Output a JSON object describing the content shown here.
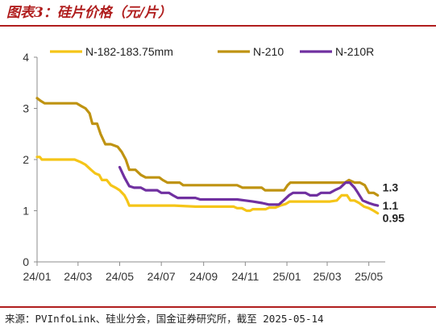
{
  "header": {
    "title": "图表3：硅片价格（元/片）"
  },
  "footer": {
    "source": "来源：PVInfoLink、硅业分会，国金证券研究所，截至 2025-05-14"
  },
  "chart_data": {
    "type": "line",
    "title": "图表3：硅片价格（元/片）",
    "xlabel": "",
    "ylabel": "",
    "x_range": [
      "2024-01-01",
      "2025-05-25"
    ],
    "ylim": [
      0,
      4
    ],
    "yticks": [
      0,
      1,
      2,
      3,
      4
    ],
    "xticks": [
      {
        "date": "2024-01-01",
        "label": "24/01"
      },
      {
        "date": "2024-03-01",
        "label": "24/03"
      },
      {
        "date": "2024-05-01",
        "label": "24/05"
      },
      {
        "date": "2024-07-01",
        "label": "24/07"
      },
      {
        "date": "2024-09-01",
        "label": "24/09"
      },
      {
        "date": "2024-11-01",
        "label": "24/11"
      },
      {
        "date": "2025-01-01",
        "label": "25/01"
      },
      {
        "date": "2025-03-01",
        "label": "25/03"
      },
      {
        "date": "2025-05-01",
        "label": "25/05"
      }
    ],
    "grid": false,
    "legend": "top",
    "series": [
      {
        "name": "N-182-183.75mm",
        "color": "#f5c518",
        "points": [
          [
            "2024-01-01",
            2.05
          ],
          [
            "2024-01-05",
            2.05
          ],
          [
            "2024-01-08",
            2.0
          ],
          [
            "2024-01-20",
            2.0
          ],
          [
            "2024-02-10",
            2.0
          ],
          [
            "2024-02-25",
            2.0
          ],
          [
            "2024-03-05",
            1.95
          ],
          [
            "2024-03-12",
            1.9
          ],
          [
            "2024-03-20",
            1.8
          ],
          [
            "2024-03-26",
            1.73
          ],
          [
            "2024-04-01",
            1.7
          ],
          [
            "2024-04-05",
            1.6
          ],
          [
            "2024-04-12",
            1.6
          ],
          [
            "2024-04-18",
            1.5
          ],
          [
            "2024-04-25",
            1.45
          ],
          [
            "2024-05-01",
            1.4
          ],
          [
            "2024-05-08",
            1.3
          ],
          [
            "2024-05-12",
            1.2
          ],
          [
            "2024-05-15",
            1.1
          ],
          [
            "2024-06-15",
            1.1
          ],
          [
            "2024-07-20",
            1.1
          ],
          [
            "2024-08-20",
            1.08
          ],
          [
            "2024-09-20",
            1.08
          ],
          [
            "2024-10-15",
            1.08
          ],
          [
            "2024-10-20",
            1.05
          ],
          [
            "2024-10-27",
            1.05
          ],
          [
            "2024-11-03",
            1.0
          ],
          [
            "2024-11-08",
            1.0
          ],
          [
            "2024-11-12",
            1.03
          ],
          [
            "2024-11-25",
            1.03
          ],
          [
            "2024-12-01",
            1.03
          ],
          [
            "2024-12-06",
            1.06
          ],
          [
            "2024-12-15",
            1.06
          ],
          [
            "2024-12-22",
            1.1
          ],
          [
            "2024-12-30",
            1.13
          ],
          [
            "2025-01-05",
            1.18
          ],
          [
            "2025-01-25",
            1.18
          ],
          [
            "2025-02-15",
            1.18
          ],
          [
            "2025-03-05",
            1.18
          ],
          [
            "2025-03-15",
            1.2
          ],
          [
            "2025-03-22",
            1.3
          ],
          [
            "2025-03-30",
            1.3
          ],
          [
            "2025-04-04",
            1.2
          ],
          [
            "2025-04-10",
            1.2
          ],
          [
            "2025-04-17",
            1.15
          ],
          [
            "2025-04-24",
            1.08
          ],
          [
            "2025-05-01",
            1.05
          ],
          [
            "2025-05-08",
            1.0
          ],
          [
            "2025-05-14",
            0.95
          ]
        ]
      },
      {
        "name": "N-210",
        "color": "#bf9311",
        "points": [
          [
            "2024-01-01",
            3.2
          ],
          [
            "2024-01-06",
            3.15
          ],
          [
            "2024-01-12",
            3.1
          ],
          [
            "2024-02-20",
            3.1
          ],
          [
            "2024-02-28",
            3.1
          ],
          [
            "2024-03-05",
            3.05
          ],
          [
            "2024-03-12",
            3.0
          ],
          [
            "2024-03-18",
            2.9
          ],
          [
            "2024-03-22",
            2.7
          ],
          [
            "2024-03-29",
            2.7
          ],
          [
            "2024-04-03",
            2.5
          ],
          [
            "2024-04-10",
            2.3
          ],
          [
            "2024-04-18",
            2.3
          ],
          [
            "2024-04-28",
            2.25
          ],
          [
            "2024-05-04",
            2.15
          ],
          [
            "2024-05-10",
            2.0
          ],
          [
            "2024-05-15",
            1.8
          ],
          [
            "2024-05-24",
            1.8
          ],
          [
            "2024-06-01",
            1.7
          ],
          [
            "2024-06-08",
            1.65
          ],
          [
            "2024-06-28",
            1.65
          ],
          [
            "2024-07-03",
            1.6
          ],
          [
            "2024-07-10",
            1.55
          ],
          [
            "2024-07-28",
            1.55
          ],
          [
            "2024-08-02",
            1.5
          ],
          [
            "2024-09-20",
            1.5
          ],
          [
            "2024-10-20",
            1.5
          ],
          [
            "2024-10-28",
            1.45
          ],
          [
            "2024-11-25",
            1.45
          ],
          [
            "2024-11-30",
            1.4
          ],
          [
            "2024-12-28",
            1.4
          ],
          [
            "2025-01-02",
            1.5
          ],
          [
            "2025-01-06",
            1.55
          ],
          [
            "2025-02-20",
            1.55
          ],
          [
            "2025-03-20",
            1.55
          ],
          [
            "2025-03-27",
            1.55
          ],
          [
            "2025-04-02",
            1.6
          ],
          [
            "2025-04-10",
            1.55
          ],
          [
            "2025-04-18",
            1.55
          ],
          [
            "2025-04-25",
            1.5
          ],
          [
            "2025-05-01",
            1.35
          ],
          [
            "2025-05-08",
            1.35
          ],
          [
            "2025-05-14",
            1.3
          ]
        ]
      },
      {
        "name": "N-210R",
        "color": "#7030a0",
        "points": [
          [
            "2024-05-01",
            1.85
          ],
          [
            "2024-05-08",
            1.65
          ],
          [
            "2024-05-15",
            1.48
          ],
          [
            "2024-05-22",
            1.45
          ],
          [
            "2024-06-01",
            1.45
          ],
          [
            "2024-06-08",
            1.4
          ],
          [
            "2024-06-25",
            1.4
          ],
          [
            "2024-07-01",
            1.35
          ],
          [
            "2024-07-12",
            1.35
          ],
          [
            "2024-07-18",
            1.3
          ],
          [
            "2024-07-25",
            1.25
          ],
          [
            "2024-08-20",
            1.25
          ],
          [
            "2024-08-27",
            1.22
          ],
          [
            "2024-09-20",
            1.22
          ],
          [
            "2024-10-20",
            1.22
          ],
          [
            "2024-11-01",
            1.2
          ],
          [
            "2024-11-12",
            1.18
          ],
          [
            "2024-11-26",
            1.15
          ],
          [
            "2024-12-06",
            1.12
          ],
          [
            "2024-12-20",
            1.12
          ],
          [
            "2024-12-27",
            1.2
          ],
          [
            "2025-01-04",
            1.3
          ],
          [
            "2025-01-10",
            1.35
          ],
          [
            "2025-01-28",
            1.35
          ],
          [
            "2025-02-04",
            1.3
          ],
          [
            "2025-02-14",
            1.3
          ],
          [
            "2025-02-20",
            1.35
          ],
          [
            "2025-03-05",
            1.35
          ],
          [
            "2025-03-12",
            1.4
          ],
          [
            "2025-03-20",
            1.45
          ],
          [
            "2025-03-28",
            1.55
          ],
          [
            "2025-04-03",
            1.55
          ],
          [
            "2025-04-10",
            1.45
          ],
          [
            "2025-04-15",
            1.35
          ],
          [
            "2025-04-22",
            1.2
          ],
          [
            "2025-05-01",
            1.15
          ],
          [
            "2025-05-08",
            1.12
          ],
          [
            "2025-05-14",
            1.1
          ]
        ]
      }
    ],
    "end_labels": [
      {
        "text": "1.3",
        "series": "N-210"
      },
      {
        "text": "1.1",
        "series": "N-210R"
      },
      {
        "text": "0.95",
        "series": "N-182-183.75mm"
      }
    ]
  }
}
